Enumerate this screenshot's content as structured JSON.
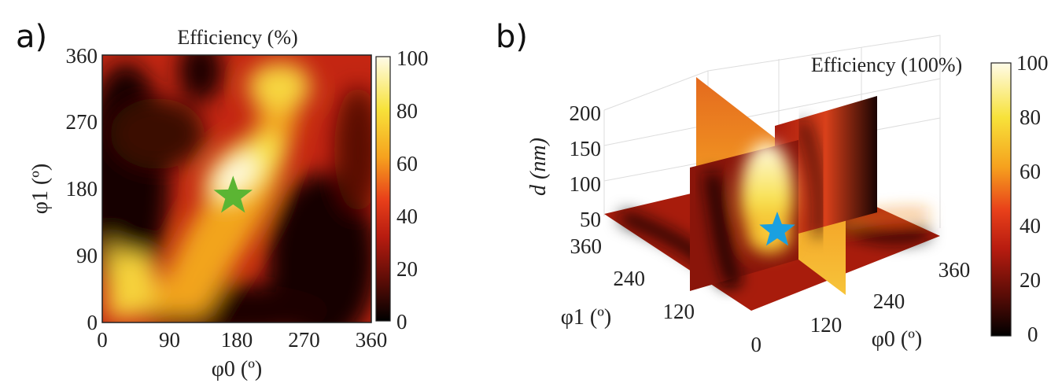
{
  "chart_data": [
    {
      "panel_label": "a)",
      "type": "heatmap",
      "title": "Efficiency (%)",
      "xlabel": "φ0 (º)",
      "ylabel": "φ1 (º)",
      "xlim": [
        0,
        360
      ],
      "ylim": [
        0,
        360
      ],
      "x_ticks": [
        "0",
        "90",
        "180",
        "270",
        "360"
      ],
      "y_ticks": [
        "0",
        "90",
        "180",
        "270",
        "360"
      ],
      "colorbar": {
        "range": [
          0,
          100
        ],
        "ticks": [
          "0",
          "20",
          "40",
          "60",
          "80",
          "100"
        ]
      },
      "colormap": [
        "#000000",
        "#5a0c06",
        "#b81c10",
        "#e8401a",
        "#f6a21e",
        "#f7e23a",
        "#fffbe8"
      ],
      "marker": {
        "shape": "star",
        "color": "#5bb533",
        "x": 175,
        "y": 170
      }
    },
    {
      "panel_label": "b)",
      "type": "heatmap",
      "title": "Efficiency (100%)",
      "xlabel": "φ0 (º)",
      "ylabel": "φ1 (º)",
      "zlabel": "d (nm)",
      "x_ticks": [
        "120",
        "240",
        "360"
      ],
      "y_ticks": [
        "0",
        "120",
        "240",
        "360"
      ],
      "z_ticks": [
        "50",
        "100",
        "150",
        "200"
      ],
      "colorbar": {
        "range": [
          0,
          100
        ],
        "ticks": [
          "0",
          "20",
          "40",
          "60",
          "80",
          "100"
        ]
      },
      "marker": {
        "shape": "star",
        "color": "#1aa0e0"
      }
    }
  ]
}
